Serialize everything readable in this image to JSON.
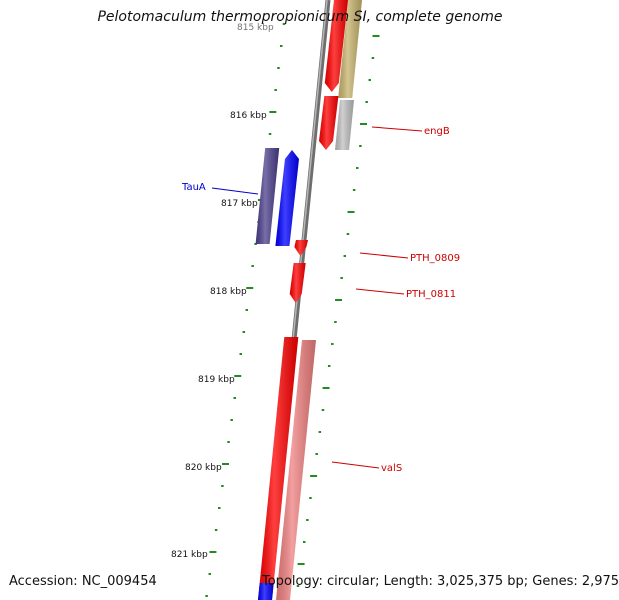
{
  "title": "Pelotomaculum thermopropionicum SI, complete genome",
  "footer": {
    "accession": "Accession: NC_009454",
    "topology": "Topology: circular; Length: 3,025,375 bp; Genes: 2,975"
  },
  "colors": {
    "backbone": "#808080",
    "tick": "#228b22",
    "forward_gene": "#ff0000",
    "reverse_gene": "#0000ff",
    "reverse_gene_dark": "#4b3f8c",
    "gene_light": "#f08080",
    "gene_olive": "#c8b46e",
    "gene_grey": "#c0c0c0",
    "label_red": "#cc0000",
    "label_blue": "#0000cc"
  },
  "scale": {
    "top_label": "815 kbp",
    "labels": [
      "816 kbp",
      "817 kbp",
      "818 kbp",
      "819 kbp",
      "820 kbp",
      "821 kbp"
    ]
  },
  "genes": [
    {
      "id": "g-olive",
      "color": "gene_olive",
      "strand": "forward"
    },
    {
      "id": "g-red-top",
      "color": "forward_gene",
      "strand": "forward"
    },
    {
      "id": "g-red-engB",
      "color": "forward_gene",
      "strand": "forward"
    },
    {
      "id": "g-grey",
      "color": "gene_grey",
      "strand": "forward"
    },
    {
      "id": "g-dark",
      "color": "reverse_gene_dark",
      "strand": "reverse"
    },
    {
      "id": "g-blue",
      "color": "reverse_gene",
      "strand": "reverse"
    },
    {
      "id": "g-PTH_0809",
      "color": "forward_gene",
      "strand": "forward"
    },
    {
      "id": "g-PTH_0811",
      "color": "forward_gene",
      "strand": "forward"
    },
    {
      "id": "g-long-red",
      "color": "forward_gene",
      "strand": "forward"
    },
    {
      "id": "g-valS",
      "color": "gene_light",
      "strand": "forward"
    },
    {
      "id": "g-bottom-blue",
      "color": "reverse_gene",
      "strand": "reverse"
    }
  ],
  "gene_labels": [
    {
      "name": "engB",
      "color": "label_red"
    },
    {
      "name": "TauA",
      "color": "label_blue"
    },
    {
      "name": "PTH_0809",
      "color": "label_red"
    },
    {
      "name": "PTH_0811",
      "color": "label_red"
    },
    {
      "name": "valS",
      "color": "label_red"
    }
  ]
}
